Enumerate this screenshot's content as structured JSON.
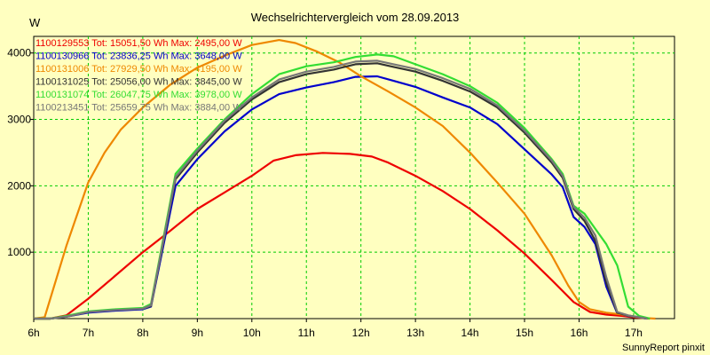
{
  "chart_data": {
    "type": "line",
    "title": "Wechselrichtervergleich vom 28.09.2013",
    "ylabel": "W",
    "xlabel": "",
    "x_ticks": [
      {
        "value": 6,
        "label": "6h"
      },
      {
        "value": 7,
        "label": "7h"
      },
      {
        "value": 8,
        "label": "8h"
      },
      {
        "value": 9,
        "label": "9h"
      },
      {
        "value": 10,
        "label": "10h"
      },
      {
        "value": 11,
        "label": "11h"
      },
      {
        "value": 12,
        "label": "12h"
      },
      {
        "value": 13,
        "label": "13h"
      },
      {
        "value": 14,
        "label": "14h"
      },
      {
        "value": 15,
        "label": "15h"
      },
      {
        "value": 16,
        "label": "16h"
      },
      {
        "value": 17,
        "label": "17h"
      }
    ],
    "y_ticks": [
      {
        "value": 1000,
        "label": "1000"
      },
      {
        "value": 2000,
        "label": "2000"
      },
      {
        "value": 3000,
        "label": "3000"
      },
      {
        "value": 4000,
        "label": "4000"
      }
    ],
    "xlim": [
      6,
      17.75
    ],
    "ylim": [
      0,
      4250
    ],
    "grid": true,
    "legend_position": "top-left",
    "series": [
      {
        "name": "1100129553",
        "label": "1100129553 Tot: 15051,50 Wh Max: 2495,00 W",
        "color": "#ee0000",
        "points": [
          [
            6.0,
            0
          ],
          [
            6.3,
            0
          ],
          [
            6.6,
            50
          ],
          [
            7.0,
            300
          ],
          [
            7.5,
            650
          ],
          [
            8.0,
            1000
          ],
          [
            8.5,
            1320
          ],
          [
            9.0,
            1650
          ],
          [
            9.5,
            1900
          ],
          [
            10.0,
            2150
          ],
          [
            10.4,
            2380
          ],
          [
            10.8,
            2460
          ],
          [
            11.3,
            2495
          ],
          [
            11.8,
            2480
          ],
          [
            12.2,
            2440
          ],
          [
            12.5,
            2350
          ],
          [
            13.0,
            2150
          ],
          [
            13.5,
            1920
          ],
          [
            14.0,
            1650
          ],
          [
            14.5,
            1330
          ],
          [
            15.0,
            980
          ],
          [
            15.5,
            580
          ],
          [
            15.9,
            250
          ],
          [
            16.2,
            100
          ],
          [
            16.5,
            60
          ],
          [
            16.8,
            40
          ],
          [
            17.0,
            20
          ],
          [
            17.2,
            5
          ],
          [
            17.3,
            0
          ]
        ]
      },
      {
        "name": "1100130966",
        "label": "1100130966 Tot: 23836,25 Wh Max: 3648,00 W",
        "color": "#0000cc",
        "points": [
          [
            6.0,
            0
          ],
          [
            6.3,
            0
          ],
          [
            6.6,
            30
          ],
          [
            7.0,
            90
          ],
          [
            7.5,
            120
          ],
          [
            8.0,
            140
          ],
          [
            8.15,
            180
          ],
          [
            8.6,
            2000
          ],
          [
            9.0,
            2400
          ],
          [
            9.5,
            2820
          ],
          [
            10.0,
            3150
          ],
          [
            10.5,
            3380
          ],
          [
            11.0,
            3480
          ],
          [
            11.5,
            3560
          ],
          [
            11.9,
            3640
          ],
          [
            12.3,
            3648
          ],
          [
            12.6,
            3580
          ],
          [
            13.0,
            3490
          ],
          [
            13.5,
            3330
          ],
          [
            14.0,
            3180
          ],
          [
            14.5,
            2930
          ],
          [
            15.0,
            2550
          ],
          [
            15.5,
            2170
          ],
          [
            15.7,
            1980
          ],
          [
            15.9,
            1530
          ],
          [
            16.1,
            1380
          ],
          [
            16.3,
            1120
          ],
          [
            16.5,
            480
          ],
          [
            16.7,
            80
          ],
          [
            16.9,
            40
          ],
          [
            17.1,
            20
          ],
          [
            17.25,
            0
          ]
        ]
      },
      {
        "name": "1100131006",
        "label": "1100131006 Tot: 27929,50 Wh Max: 4195,00 W",
        "color": "#ee8800",
        "points": [
          [
            6.0,
            0
          ],
          [
            6.2,
            20
          ],
          [
            6.6,
            1100
          ],
          [
            7.0,
            2050
          ],
          [
            7.3,
            2500
          ],
          [
            7.6,
            2850
          ],
          [
            8.0,
            3180
          ],
          [
            8.5,
            3520
          ],
          [
            9.0,
            3780
          ],
          [
            9.5,
            3960
          ],
          [
            10.0,
            4120
          ],
          [
            10.5,
            4195
          ],
          [
            10.8,
            4150
          ],
          [
            11.2,
            4020
          ],
          [
            11.6,
            3860
          ],
          [
            12.0,
            3650
          ],
          [
            12.5,
            3420
          ],
          [
            13.0,
            3180
          ],
          [
            13.5,
            2900
          ],
          [
            14.0,
            2500
          ],
          [
            14.5,
            2050
          ],
          [
            15.0,
            1580
          ],
          [
            15.5,
            950
          ],
          [
            15.8,
            500
          ],
          [
            16.0,
            250
          ],
          [
            16.2,
            140
          ],
          [
            16.5,
            90
          ],
          [
            16.8,
            60
          ],
          [
            17.0,
            30
          ],
          [
            17.2,
            10
          ],
          [
            17.4,
            0
          ]
        ]
      },
      {
        "name": "1100131025",
        "label": "1100131025 Tot: 25056,00 Wh Max: 3845,00 W",
        "color": "#333333",
        "points": [
          [
            6.0,
            0
          ],
          [
            6.3,
            0
          ],
          [
            6.6,
            30
          ],
          [
            7.0,
            100
          ],
          [
            7.5,
            130
          ],
          [
            8.0,
            150
          ],
          [
            8.15,
            190
          ],
          [
            8.6,
            2100
          ],
          [
            9.0,
            2500
          ],
          [
            9.5,
            2950
          ],
          [
            10.0,
            3300
          ],
          [
            10.5,
            3560
          ],
          [
            11.0,
            3680
          ],
          [
            11.5,
            3750
          ],
          [
            11.9,
            3830
          ],
          [
            12.3,
            3845
          ],
          [
            12.6,
            3790
          ],
          [
            13.0,
            3720
          ],
          [
            13.5,
            3580
          ],
          [
            14.0,
            3420
          ],
          [
            14.5,
            3180
          ],
          [
            15.0,
            2800
          ],
          [
            15.5,
            2350
          ],
          [
            15.7,
            2120
          ],
          [
            15.9,
            1650
          ],
          [
            16.1,
            1470
          ],
          [
            16.3,
            1170
          ],
          [
            16.5,
            540
          ],
          [
            16.7,
            90
          ],
          [
            16.9,
            45
          ],
          [
            17.1,
            20
          ],
          [
            17.25,
            0
          ]
        ]
      },
      {
        "name": "1100131074",
        "label": "1100131074 Tot: 26047,75 Wh Max: 3978,00 W",
        "color": "#33dd33",
        "points": [
          [
            6.0,
            0
          ],
          [
            6.3,
            0
          ],
          [
            6.6,
            40
          ],
          [
            7.0,
            110
          ],
          [
            7.5,
            140
          ],
          [
            8.0,
            160
          ],
          [
            8.15,
            220
          ],
          [
            8.6,
            2180
          ],
          [
            9.0,
            2560
          ],
          [
            9.5,
            3000
          ],
          [
            10.0,
            3380
          ],
          [
            10.5,
            3680
          ],
          [
            11.0,
            3800
          ],
          [
            11.5,
            3860
          ],
          [
            11.9,
            3940
          ],
          [
            12.3,
            3978
          ],
          [
            12.6,
            3950
          ],
          [
            13.0,
            3830
          ],
          [
            13.5,
            3680
          ],
          [
            14.0,
            3500
          ],
          [
            14.5,
            3250
          ],
          [
            15.0,
            2870
          ],
          [
            15.5,
            2400
          ],
          [
            15.7,
            2180
          ],
          [
            15.9,
            1700
          ],
          [
            16.1,
            1580
          ],
          [
            16.3,
            1350
          ],
          [
            16.5,
            1120
          ],
          [
            16.7,
            800
          ],
          [
            16.9,
            180
          ],
          [
            17.1,
            40
          ],
          [
            17.3,
            0
          ]
        ]
      },
      {
        "name": "1100213451",
        "label": "1100213451 Tot: 25659,75 Wh Max: 3884,00 W",
        "color": "#777777",
        "points": [
          [
            6.0,
            0
          ],
          [
            6.3,
            0
          ],
          [
            6.6,
            30
          ],
          [
            7.0,
            100
          ],
          [
            7.5,
            130
          ],
          [
            8.0,
            150
          ],
          [
            8.15,
            200
          ],
          [
            8.6,
            2130
          ],
          [
            9.0,
            2530
          ],
          [
            9.5,
            2980
          ],
          [
            10.0,
            3330
          ],
          [
            10.5,
            3600
          ],
          [
            11.0,
            3720
          ],
          [
            11.5,
            3790
          ],
          [
            11.9,
            3870
          ],
          [
            12.3,
            3884
          ],
          [
            12.6,
            3830
          ],
          [
            13.0,
            3760
          ],
          [
            13.5,
            3620
          ],
          [
            14.0,
            3460
          ],
          [
            14.5,
            3210
          ],
          [
            15.0,
            2830
          ],
          [
            15.5,
            2380
          ],
          [
            15.7,
            2150
          ],
          [
            15.9,
            1680
          ],
          [
            16.1,
            1520
          ],
          [
            16.3,
            1250
          ],
          [
            16.5,
            620
          ],
          [
            16.7,
            100
          ],
          [
            16.9,
            50
          ],
          [
            17.1,
            20
          ],
          [
            17.25,
            0
          ]
        ]
      }
    ],
    "footer": "SunnyReport pinxit"
  }
}
